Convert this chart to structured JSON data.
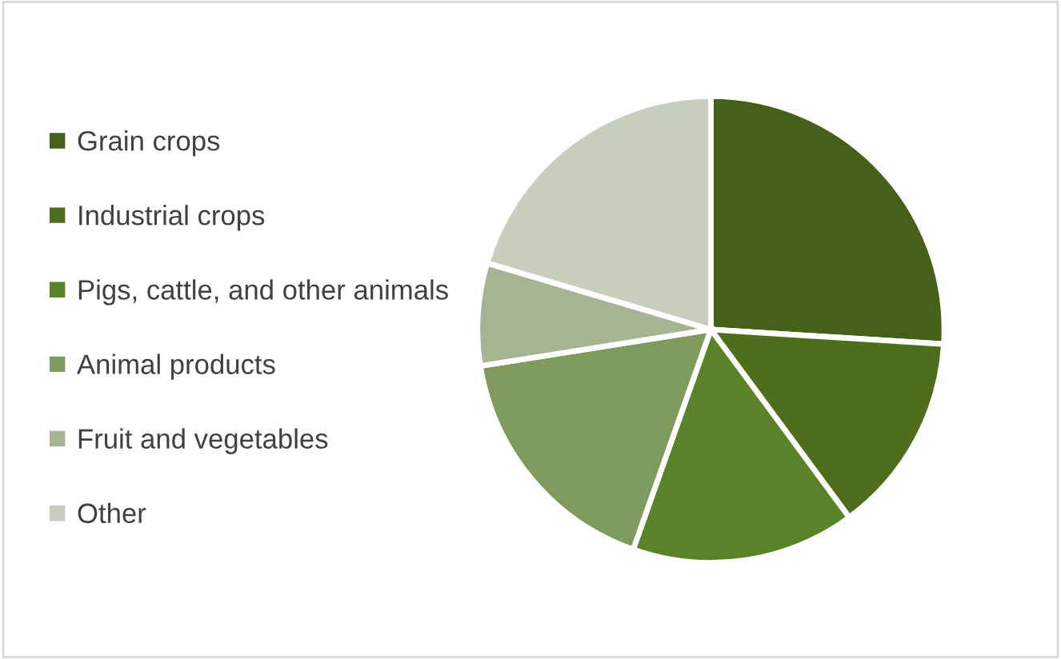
{
  "chart_data": {
    "type": "pie",
    "categories": [
      "Grain crops",
      "Industrial crops",
      "Pigs, cattle, and other animals",
      "Animal products",
      "Fruit and vegetables",
      "Other"
    ],
    "values": [
      26,
      13.9,
      15.5,
      17.1,
      7.1,
      20.4
    ],
    "colors": [
      "#456119",
      "#4e6e1c",
      "#5a8228",
      "#7f9a5d",
      "#a5b593",
      "#c5cfbb"
    ],
    "legend": "left"
  }
}
